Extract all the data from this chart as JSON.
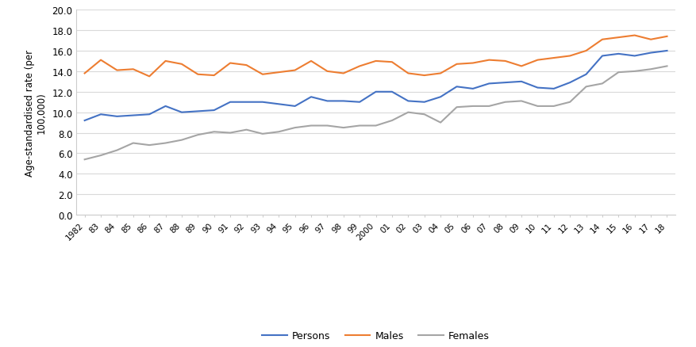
{
  "years": [
    1982,
    1983,
    1984,
    1985,
    1986,
    1987,
    1988,
    1989,
    1990,
    1991,
    1992,
    1993,
    1994,
    1995,
    1996,
    1997,
    1998,
    1999,
    2000,
    2001,
    2002,
    2003,
    2004,
    2005,
    2006,
    2007,
    2008,
    2009,
    2010,
    2011,
    2012,
    2013,
    2014,
    2015,
    2016,
    2017,
    2018
  ],
  "persons": [
    9.2,
    9.8,
    9.6,
    9.7,
    9.8,
    10.6,
    10.0,
    10.1,
    10.2,
    11.0,
    11.0,
    11.0,
    10.8,
    10.6,
    11.5,
    11.1,
    11.1,
    11.0,
    12.0,
    12.0,
    11.1,
    11.0,
    11.5,
    12.5,
    12.3,
    12.8,
    12.9,
    13.0,
    12.4,
    12.3,
    12.9,
    13.7,
    15.5,
    15.7,
    15.5,
    15.8,
    16.0
  ],
  "males": [
    13.8,
    15.1,
    14.1,
    14.2,
    13.5,
    15.0,
    14.7,
    13.7,
    13.6,
    14.8,
    14.6,
    13.7,
    13.9,
    14.1,
    15.0,
    14.0,
    13.8,
    14.5,
    15.0,
    14.9,
    13.8,
    13.6,
    13.8,
    14.7,
    14.8,
    15.1,
    15.0,
    14.5,
    15.1,
    15.3,
    15.5,
    16.0,
    17.1,
    17.3,
    17.5,
    17.1,
    17.4
  ],
  "females": [
    5.4,
    5.8,
    6.3,
    7.0,
    6.8,
    7.0,
    7.3,
    7.8,
    8.1,
    8.0,
    8.3,
    7.9,
    8.1,
    8.5,
    8.7,
    8.7,
    8.5,
    8.7,
    8.7,
    9.2,
    10.0,
    9.8,
    9.0,
    10.5,
    10.6,
    10.6,
    11.0,
    11.1,
    10.6,
    10.6,
    11.0,
    12.5,
    12.8,
    13.9,
    14.0,
    14.2,
    14.5
  ],
  "persons_color": "#4472C4",
  "males_color": "#ED7D31",
  "females_color": "#A5A5A5",
  "ylabel_line1": "Age-standardised rate (per",
  "ylabel_line2": "100,000)",
  "ylim": [
    0.0,
    20.0
  ],
  "yticks": [
    0.0,
    2.0,
    4.0,
    6.0,
    8.0,
    10.0,
    12.0,
    14.0,
    16.0,
    18.0,
    20.0
  ],
  "legend_labels": [
    "Persons",
    "Males",
    "Females"
  ],
  "bg_color": "#ffffff",
  "grid_color": "#d9d9d9",
  "line_width": 1.5,
  "xlabel_rotation": 45,
  "xlabel_ha": "right"
}
